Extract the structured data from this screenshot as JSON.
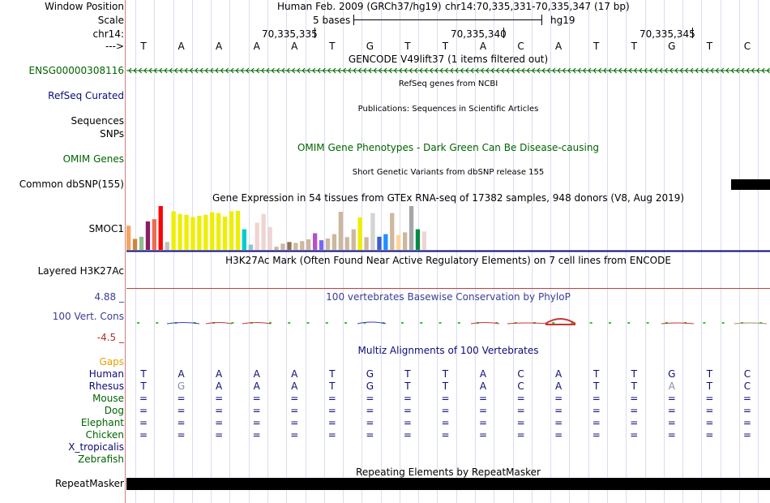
{
  "header": {
    "window_position_label": "Window Position",
    "scale_label": "Scale",
    "chrom_label": "chr14:",
    "arrow_label": "--->",
    "assembly_title": "Human Feb. 2009 (GRCh37/hg19)",
    "region": "chr14:70,335,331-70,335,347 (17 bp)",
    "scale_text": "5 bases",
    "scale_assembly": "hg19",
    "positions": [
      "70,335,335",
      "70,335,340",
      "70,335,345"
    ]
  },
  "sequence": [
    "T",
    "A",
    "A",
    "A",
    "A",
    "T",
    "G",
    "T",
    "T",
    "A",
    "C",
    "A",
    "T",
    "T",
    "G",
    "T",
    "C"
  ],
  "tracks": {
    "gencode": {
      "title": "GENCODE V49lift37 (1 items filtered out)",
      "label": "ENSG00000308116",
      "color": "#006400"
    },
    "refseq": {
      "title": "RefSeq genes from NCBI",
      "label": "RefSeq Curated",
      "color": "#0c0c78"
    },
    "publications": {
      "title": "Publications: Sequences in Scientific Articles",
      "label1": "Sequences",
      "label2": "SNPs"
    },
    "omim": {
      "title": "OMIM Gene Phenotypes - Dark Green Can Be Disease-causing",
      "label": "OMIM Genes",
      "color": "#006400"
    },
    "dbsnp": {
      "title": "Short Genetic Variants from dbSNP release 155",
      "label": "Common dbSNP(155)"
    },
    "gtex": {
      "title": "Gene Expression in 54 tissues from GTEx RNA-seq of 17382 samples, 948 donors (V8, Aug 2019)",
      "label": "SMOC1"
    },
    "h3k27ac": {
      "title": "H3K27Ac Mark (Often Found Near Active Regulatory Elements) on 7 cell lines from ENCODE",
      "label": "Layered H3K27Ac"
    },
    "phylop": {
      "title": "100 vertebrates Basewise Conservation by PhyloP",
      "label": "100 Vert. Cons",
      "max": "4.88 _",
      "min": "-4.5 _",
      "color": "#3c3c96"
    },
    "multiz": {
      "title": "Multiz Alignments of 100 Vertebrates",
      "color": "#0c0c78"
    },
    "repeatmasker": {
      "title": "Repeating Elements by RepeatMasker",
      "label": "RepeatMasker"
    }
  },
  "alignment": {
    "gaps_label": "Gaps",
    "species": [
      {
        "name": "Human",
        "color": "#0c0c78",
        "bases": [
          "T",
          "A",
          "A",
          "A",
          "A",
          "T",
          "G",
          "T",
          "T",
          "A",
          "C",
          "A",
          "T",
          "T",
          "G",
          "T",
          "C"
        ]
      },
      {
        "name": "Rhesus",
        "color": "#0c0c78",
        "bases": [
          "T",
          "G",
          "A",
          "A",
          "A",
          "T",
          "G",
          "T",
          "T",
          "A",
          "C",
          "A",
          "T",
          "T",
          "A",
          "T",
          "C"
        ]
      },
      {
        "name": "Mouse",
        "color": "#006400",
        "bases": [
          "=",
          "=",
          "=",
          "=",
          "=",
          "=",
          "=",
          "=",
          "=",
          "=",
          "=",
          "=",
          "=",
          "=",
          "=",
          "=",
          "="
        ]
      },
      {
        "name": "Dog",
        "color": "#006400",
        "bases": [
          "=",
          "=",
          "=",
          "=",
          "=",
          "=",
          "=",
          "=",
          "=",
          "=",
          "=",
          "=",
          "=",
          "=",
          "=",
          "=",
          "="
        ]
      },
      {
        "name": "Elephant",
        "color": "#006400",
        "bases": [
          "=",
          "=",
          "=",
          "=",
          "=",
          "=",
          "=",
          "=",
          "=",
          "=",
          "=",
          "=",
          "=",
          "=",
          "=",
          "=",
          "="
        ]
      },
      {
        "name": "Chicken",
        "color": "#006400",
        "bases": [
          "=",
          "=",
          "=",
          "=",
          "=",
          "=",
          "=",
          "=",
          "=",
          "=",
          "=",
          "=",
          "=",
          "=",
          "=",
          "=",
          "="
        ]
      },
      {
        "name": "X_tropicalis",
        "color": "#0c0c78",
        "bases": []
      },
      {
        "name": "Zebrafish",
        "color": "#006400",
        "bases": []
      }
    ]
  },
  "gtex_bars": [
    {
      "value": 0.55,
      "color": "#f4a460"
    },
    {
      "value": 0.25,
      "color": "#cd853f"
    },
    {
      "value": 0.3,
      "color": "#8fbc8f"
    },
    {
      "value": 0.65,
      "color": "#8b1c62"
    },
    {
      "value": 0.7,
      "color": "#ee6a50"
    },
    {
      "value": 1.0,
      "color": "#ff0000"
    },
    {
      "value": 0.18,
      "color": "#c0c0c0"
    },
    {
      "value": 0.88,
      "color": "#eeee00"
    },
    {
      "value": 0.82,
      "color": "#eeee00"
    },
    {
      "value": 0.8,
      "color": "#eeee00"
    },
    {
      "value": 0.75,
      "color": "#eeee00"
    },
    {
      "value": 0.78,
      "color": "#eeee00"
    },
    {
      "value": 0.8,
      "color": "#eeee00"
    },
    {
      "value": 0.86,
      "color": "#eeee00"
    },
    {
      "value": 0.84,
      "color": "#eeee00"
    },
    {
      "value": 0.76,
      "color": "#eeee00"
    },
    {
      "value": 0.88,
      "color": "#eeee00"
    },
    {
      "value": 0.89,
      "color": "#eeee00"
    },
    {
      "value": 0.47,
      "color": "#00cdcd"
    },
    {
      "value": 0.12,
      "color": "#9ac0cd"
    },
    {
      "value": 0.62,
      "color": "#eed5d2"
    },
    {
      "value": 0.82,
      "color": "#eed5d2"
    },
    {
      "value": 0.52,
      "color": "#eed5d2"
    },
    {
      "value": 0.07,
      "color": "#cdb79e"
    },
    {
      "value": 0.14,
      "color": "#cdb79e"
    },
    {
      "value": 0.18,
      "color": "#8b7355"
    },
    {
      "value": 0.16,
      "color": "#cdb79e"
    },
    {
      "value": 0.2,
      "color": "#cdb79e"
    },
    {
      "value": 0.24,
      "color": "#cdb79e"
    },
    {
      "value": 0.38,
      "color": "#b452cd"
    },
    {
      "value": 0.22,
      "color": "#7a67ee"
    },
    {
      "value": 0.26,
      "color": "#cdb79e"
    },
    {
      "value": 0.36,
      "color": "#cdb79e"
    },
    {
      "value": 0.87,
      "color": "#cdb79e"
    },
    {
      "value": 0.29,
      "color": "#cdb79e"
    },
    {
      "value": 0.47,
      "color": "#cdb79e"
    },
    {
      "value": 0.74,
      "color": "#eeee00"
    },
    {
      "value": 0.29,
      "color": "#cdb79e"
    },
    {
      "value": 0.84,
      "color": "#d3d3d3"
    },
    {
      "value": 0.3,
      "color": "#3a5fcd"
    },
    {
      "value": 0.36,
      "color": "#1e90ff"
    },
    {
      "value": 0.84,
      "color": "#cdb79e"
    },
    {
      "value": 0.34,
      "color": "#ffd39b"
    },
    {
      "value": 0.4,
      "color": "#cdb79e"
    },
    {
      "value": 1.0,
      "color": "#a6a6a6"
    },
    {
      "value": 0.47,
      "color": "#008b45"
    },
    {
      "value": 0.42,
      "color": "#eed5d2"
    }
  ]
}
